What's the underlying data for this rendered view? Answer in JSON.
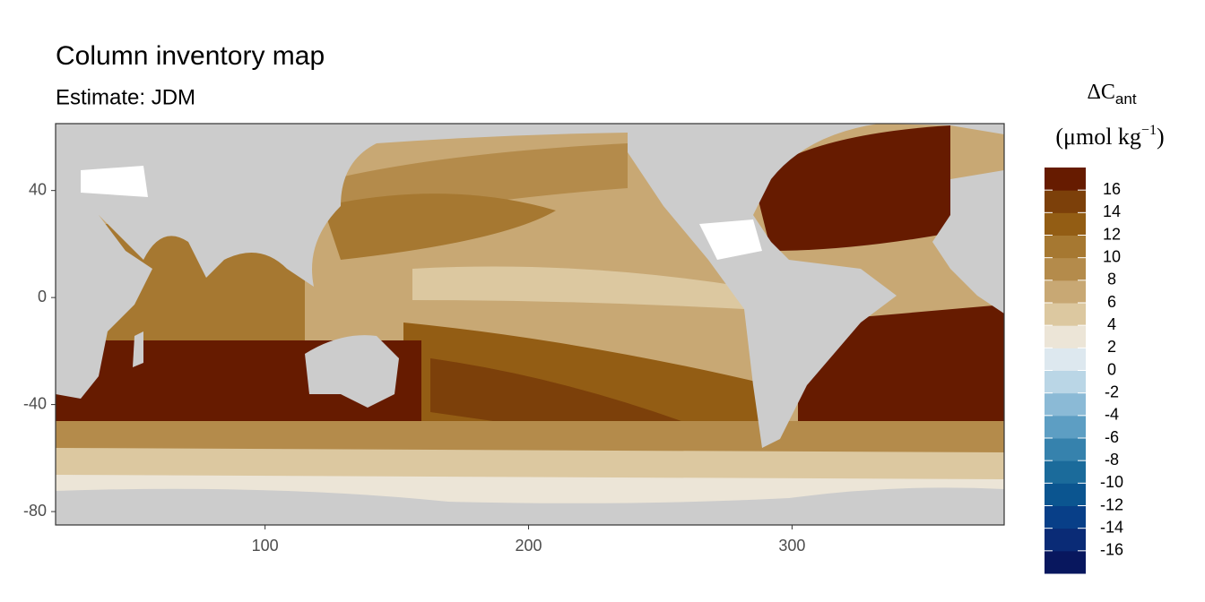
{
  "chart_data": {
    "type": "raster-map",
    "title": "Column inventory map",
    "subtitle": "Estimate: JDM",
    "xlim": [
      20.5,
      380.5
    ],
    "xticks": [
      100,
      200,
      300
    ],
    "ylim": [
      -85,
      65
    ],
    "yticks": [
      40,
      0,
      -40,
      -80
    ],
    "grid": false,
    "legend": {
      "title_main": "ΔC",
      "title_sub": "ant",
      "unit_open": "(μmol kg",
      "unit_sup": "−1",
      "unit_close": ")",
      "lim": [
        -18,
        18
      ],
      "ticks": [
        16,
        14,
        12,
        10,
        8,
        6,
        4,
        2,
        0,
        -2,
        -4,
        -6,
        -8,
        -10,
        -12,
        -14,
        -16
      ],
      "colors": [
        "#08175e",
        "#0a2b76",
        "#083f88",
        "#0b5590",
        "#1b6b9b",
        "#3682ad",
        "#5d9ec3",
        "#8bbad6",
        "#bad6e6",
        "#dde8ef",
        "#ece5d7",
        "#dcc8a0",
        "#c8a874",
        "#b48b4b",
        "#a67831",
        "#935d14",
        "#7c400a",
        "#661b00"
      ]
    }
  }
}
